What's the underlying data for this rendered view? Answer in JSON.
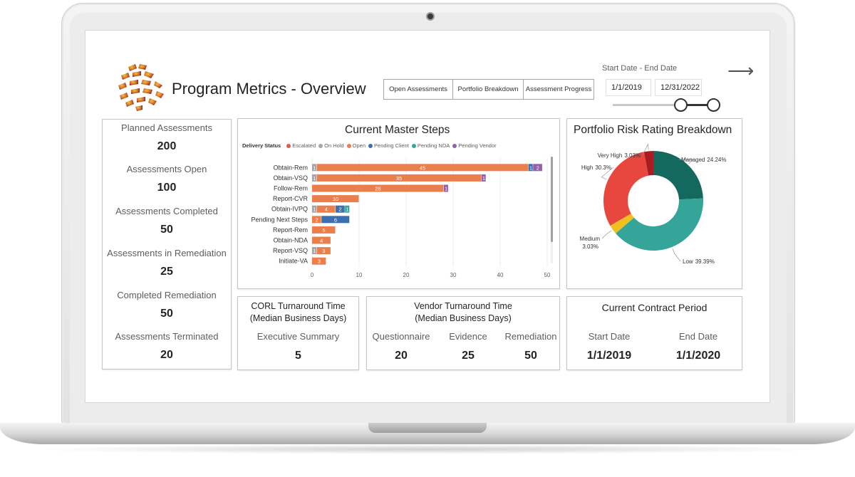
{
  "header": {
    "title": "Program Metrics - Overview",
    "nav_buttons": [
      "Open Assessments",
      "Portfolio Breakdown",
      "Assessment Progress"
    ],
    "date_range_label": "Start Date - End Date",
    "start_date": "1/1/2019",
    "end_date": "12/31/2022",
    "slider": {
      "start_fraction": 0.63,
      "end_fraction": 0.94
    }
  },
  "kpis": [
    {
      "label": "Planned Assessments",
      "value": "200"
    },
    {
      "label": "Assessments Open",
      "value": "100"
    },
    {
      "label": "Assessments Completed",
      "value": "50"
    },
    {
      "label": "Assessments in Remediation",
      "value": "25"
    },
    {
      "label": "Completed Remediation",
      "value": "50"
    },
    {
      "label": "Assessments Terminated",
      "value": "20"
    }
  ],
  "master_steps": {
    "title": "Current Master Steps",
    "legend_title": "Delivery Status"
  },
  "risk": {
    "title": "Portfolio Risk Rating Breakdown"
  },
  "corl": {
    "title_line1": "CORL Turnaround Time",
    "title_line2": "(Median Business Days)",
    "label": "Executive Summary",
    "value": "5"
  },
  "vendor": {
    "title_line1": "Vendor Turnaround Time",
    "title_line2": "(Median Business Days)",
    "items": [
      {
        "label": "Questionnaire",
        "value": "20"
      },
      {
        "label": "Evidence",
        "value": "25"
      },
      {
        "label": "Remediation",
        "value": "50"
      }
    ]
  },
  "contract": {
    "title": "Current Contract Period",
    "start_label": "Start Date",
    "end_label": "End Date",
    "start_value": "1/1/2019",
    "end_value": "1/1/2020"
  },
  "chart_data": [
    {
      "type": "bar",
      "orientation": "horizontal",
      "stacked": true,
      "title": "Current Master Steps",
      "legend_title": "Delivery Status",
      "legend_position": "top-left",
      "categories": [
        "Obtain-Rem",
        "Obtain-VSQ",
        "Follow-Rem",
        "Report-CVR",
        "Obtain-IVPQ",
        "Pending Next Steps",
        "Report-Rem",
        "Obtain-NDA",
        "Report-VSQ",
        "Initiate-VA"
      ],
      "series": [
        {
          "name": "Escalated",
          "color": "#e15a4f",
          "values": [
            0,
            0,
            0,
            0,
            0,
            0,
            0,
            0,
            0,
            0
          ]
        },
        {
          "name": "On Hold",
          "color": "#a6a6a6",
          "values": [
            1,
            1,
            0,
            0,
            1,
            0,
            0,
            0,
            1,
            0
          ]
        },
        {
          "name": "Open",
          "color": "#ea7f4b",
          "values": [
            45,
            35,
            28,
            10,
            4,
            2,
            5,
            4,
            3,
            3
          ]
        },
        {
          "name": "Pending Client",
          "color": "#3c6fb0",
          "values": [
            1,
            0,
            0,
            0,
            2,
            6,
            0,
            0,
            0,
            0
          ]
        },
        {
          "name": "Pending NDA",
          "color": "#35a59a",
          "values": [
            0,
            0,
            0,
            0,
            1,
            0,
            0,
            0,
            0,
            0
          ]
        },
        {
          "name": "Pending Vendor",
          "color": "#9460a8",
          "values": [
            2,
            1,
            1,
            0,
            0,
            0,
            0,
            0,
            0,
            0
          ]
        }
      ],
      "xlim": [
        0,
        50
      ],
      "xticks": [
        0,
        10,
        20,
        30,
        40,
        50
      ],
      "grid": true
    },
    {
      "type": "pie",
      "donut": true,
      "title": "Portfolio Risk Rating Breakdown",
      "slices": [
        {
          "label": "Managed",
          "value": 24.24,
          "display": "24.24%",
          "color": "#14695f"
        },
        {
          "label": "Low",
          "value": 39.39,
          "display": "39.39%",
          "color": "#35a59a"
        },
        {
          "label": "Medium",
          "value": 3.03,
          "display": "3.03%",
          "color": "#efc11e"
        },
        {
          "label": "High",
          "value": 30.3,
          "display": "30.3%",
          "color": "#e8473e"
        },
        {
          "label": "Very High",
          "value": 3.03,
          "display": "3.03%",
          "color": "#a91c22"
        }
      ]
    }
  ]
}
